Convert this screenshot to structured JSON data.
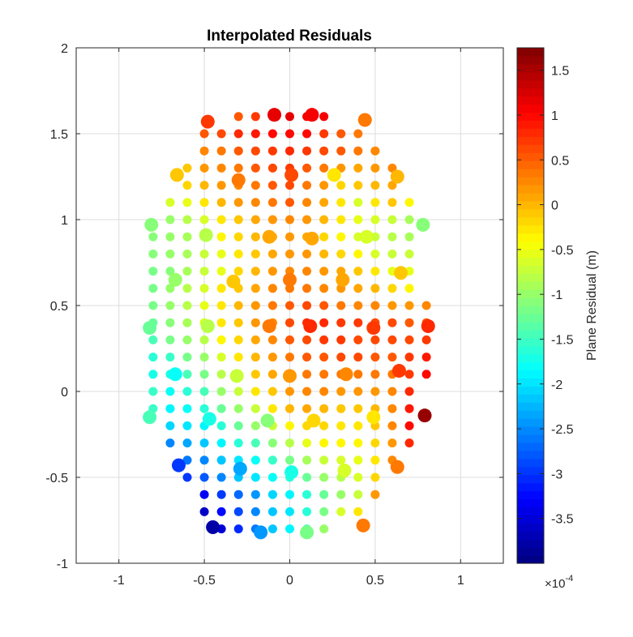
{
  "chart_data": {
    "type": "scatter",
    "title": "Interpolated Residuals",
    "xlim": [
      -1.25,
      1.25
    ],
    "ylim": [
      -1,
      2
    ],
    "xticks": [
      -1,
      -0.5,
      0,
      0.5,
      1
    ],
    "yticks": [
      -1,
      -0.5,
      0,
      0.5,
      1,
      1.5,
      2
    ],
    "grid": true,
    "colormap": "jet",
    "colorbar": {
      "label": "Plane Residual (m)",
      "exponent_label": "×10",
      "exponent": "-4",
      "clim": [
        -4,
        1.75
      ],
      "ticks": [
        -3.5,
        -3,
        -2.5,
        -2,
        -1.5,
        -1,
        -0.5,
        0,
        0.5,
        1,
        1.5
      ],
      "levels": 64
    },
    "notes": "grid points spaced 0.1 in x and y; value units ×1e-4 m",
    "points_text": "-0.3 1.6 0.5;-0.2 1.6 0.7;-0.1 1.6 1.1;0 1.6 1.2;0.1 1.6 1.1;0.2 1.6 1.1;-0.5 1.5 0.5;-0.4 1.5 0.6;-0.3 1.5 0.8;-0.2 1.5 0.9;-0.1 1.5 1.0;0 1.5 1.0;0.1 1.5 1.0;0.2 1.5 0.7;0.3 1.5 0.5;0.4 1.5 0.4;-0.5 1.4 0.3;-0.4 1.4 0.4;-0.3 1.4 0.5;-0.2 1.4 0.6;-0.1 1.4 0.7;0 1.4 0.8;0.1 1.4 0.7;0.2 1.4 0.6;0.3 1.4 0.5;0.4 1.4 0.4;0.5 1.4 0.3;-0.6 1.3 -0.1;-0.5 1.3 0.2;-0.4 1.3 0.3;-0.3 1.3 0.4;-0.2 1.3 0.5;-0.1 1.3 0.6;0 1.3 0.7;0.1 1.3 0.5;0.2 1.3 0.4;0.3 1.3 0.2;0.4 1.3 0.1;0.5 1.3 0.2;0.6 1.3 0.3;-0.6 1.2 -0.2;-0.5 1.2 0.0;-0.4 1.2 0.2;-0.3 1.2 0.3;-0.2 1.2 0.4;-0.1 1.2 0.5;0 1.2 0.6;0.1 1.2 0.4;0.2 1.2 0.2;0.3 1.2 -0.2;0.4 1.2 -0.1;0.5 1.2 0.0;0.6 1.2 0.1;-0.7 1.1 -0.6;-0.6 1.1 -0.5;-0.5 1.1 -0.3;-0.4 1.1 0.0;-0.3 1.1 0.2;-0.2 1.1 0.3;-0.1 1.1 0.4;0 1.1 0.5;0.1 1.1 0.3;0.2 1.1 0.1;0.3 1.1 -0.3;0.4 1.1 -0.6;0.5 1.1 -0.3;0.6 1.1 -0.1;0.7 1.1 -0.4;-0.7 1.0 -1.0;-0.6 1.0 -0.8;-0.5 1.0 -0.6;-0.4 1.0 -0.3;-0.3 1.0 -0.1;-0.2 1.0 0.1;-0.1 1.0 0.2;0 1.0 0.3;0.1 1.0 0.2;0.2 1.0 0.0;0.3 1.0 -0.3;0.4 1.0 -0.5;0.5 1.0 -0.6;0.6 1.0 -0.7;0.7 1.0 -0.9;-0.8 0.9 -1.1;-0.7 0.9 -1.0;-0.6 0.9 -0.9;-0.5 0.9 -0.7;-0.4 0.9 -0.4;-0.3 0.9 -0.2;-0.2 0.9 0.0;-0.1 0.9 0.1;0 0.9 0.2;0.1 0.9 0.1;0.2 0.9 -0.2;0.3 0.9 -0.4;0.4 0.9 -0.6;0.5 0.9 -0.7;0.6 0.9 -0.8;0.7 0.9 -0.9;-0.8 0.8 -1.1;-0.7 0.8 -1.0;-0.6 0.8 -0.9;-0.5 0.8 -0.7;-0.4 0.8 -0.5;-0.3 0.8 -0.3;-0.2 0.8 -0.1;-0.1 0.8 0.1;0 0.8 0.2;0.1 0.8 0.2;0.2 0.8 0.0;0.3 0.8 -0.2;0.4 0.8 -0.4;0.5 0.8 -0.6;0.6 0.8 -0.7;0.7 0.8 -0.7;-0.8 0.7 -1.2;-0.7 0.7 -1.1;-0.6 0.7 -0.9;-0.5 0.7 -0.7;-0.4 0.7 -0.5;-0.3 0.7 -0.2;-0.2 0.7 0.0;-0.1 0.7 0.2;0 0.7 0.3;0.1 0.7 0.3;0.2 0.7 0.2;0.3 0.7 0.1;0.4 0.7 -0.1;0.5 0.7 -0.3;0.6 0.7 -0.5;0.7 0.7 -0.5;-0.8 0.6 -1.2;-0.7 0.6 -1.0;-0.6 0.6 -0.8;-0.5 0.6 -0.6;-0.4 0.6 -0.3;-0.3 0.6 -0.1;-0.2 0.6 0.1;-0.1 0.6 0.3;0 0.6 0.4;0.1 0.6 0.4;0.2 0.6 0.3;0.3 0.6 0.2;0.4 0.6 0.1;0.5 0.6 0.0;0.6 0.6 -0.2;0.7 0.6 -0.4;-0.8 0.5 -1.2;-0.7 0.5 -1.0;-0.6 0.5 -0.8;-0.5 0.5 -0.5;-0.4 0.5 -0.3;-0.3 0.5 0.0;-0.2 0.5 0.2;-0.1 0.5 0.4;0 0.5 0.5;0.1 0.5 0.6;0.2 0.5 0.5;0.3 0.5 0.4;0.4 0.5 0.3;0.5 0.5 0.3;0.6 0.5 0.2;0.7 0.5 0.2;0.8 0.5 0.3;-0.8 0.4 -1.3;-0.7 0.4 -1.1;-0.6 0.4 -0.9;-0.5 0.4 -0.6;-0.4 0.4 -0.3;-0.3 0.4 -0.1;-0.2 0.4 0.2;-0.1 0.4 0.3;0 0.4 0.6;0.1 0.4 0.8;0.2 0.4 0.8;0.3 0.4 0.7;0.4 0.4 0.7;0.5 0.4 0.6;0.6 0.4 0.6;0.7 0.4 0.5;0.8 0.4 0.5;-0.8 0.3 -1.4;-0.7 0.3 -1.2;-0.6 0.3 -1.0;-0.5 0.3 -0.8;-0.4 0.3 -0.4;-0.3 0.3 -0.2;-0.2 0.3 0.1;-0.1 0.3 0.3;0 0.3 0.5;0.1 0.3 0.6;0.2 0.3 0.7;0.3 0.3 0.7;0.4 0.3 0.6;0.5 0.3 0.6;0.6 0.3 0.6;0.7 0.3 0.6;0.8 0.3 0.7;-0.8 0.2 -1.6;-0.7 0.2 -1.5;-0.6 0.2 -1.2;-0.5 0.2 -1.0;-0.4 0.2 -0.6;-0.3 0.2 -0.3;-0.2 0.2 0.0;-0.1 0.2 0.2;0 0.2 0.4;0.1 0.2 0.5;0.2 0.2 0.5;0.3 0.2 0.6;0.4 0.2 0.6;0.5 0.2 0.5;0.6 0.2 0.5;0.7 0.2 0.7;0.8 0.2 0.9;-0.8 0.1 -1.7;-0.7 0.1 -1.7;-0.6 0.1 -1.4;-0.5 0.1 -1.2;-0.4 0.1 -0.8;-0.3 0.1 -0.5;-0.2 0.1 -0.1;-0.1 0.1 0.1;0 0.1 0.3;0.1 0.1 0.4;0.2 0.1 0.4;0.3 0.1 0.4;0.4 0.1 0.4;0.5 0.1 0.4;0.6 0.1 0.4;0.7 0.1 0.7;0.8 0.1 1.0;-0.8 0.0 -1.5;-0.7 0.0 -1.8;-0.6 0.0 -1.6;-0.5 0.0 -1.4;-0.4 0.0 -1.0;-0.3 0.0 -0.7;-0.2 0.0 -0.3;-0.1 0.0 -0.1;0 0.0 0.2;0.1 0.0 0.3;0.2 0.0 0.3;0.3 0.0 0.2;0.4 0.0 0.2;0.5 0.0 0.2;0.6 0.0 0.3;0.7 0.0 0.8;-0.8 -0.1 -1.5;-0.7 -0.1 -1.9;-0.6 -0.1 -1.8;-0.5 -0.1 -1.6;-0.4 -0.1 -1.3;-0.3 -0.1 -1.0;-0.2 -0.1 -0.7;-0.1 -0.1 -0.3;0 -0.1 0.0;0.1 -0.1 0.1;0.2 -0.1 0.0;0.3 -0.1 -0.1;0.4 -0.1 -0.1;0.5 -0.1 0.0;0.6 -0.1 0.3;0.7 -0.1 0.9;-0.7 -0.2 -2.1;-0.6 -0.2 -2.0;-0.5 -0.2 -1.9;-0.4 -0.2 -1.6;-0.3 -0.2 -1.3;-0.2 -0.2 -1.0;-0.1 -0.2 -0.7;0 -0.2 -0.4;0.1 -0.2 -0.2;0.2 -0.2 -0.2;0.3 -0.2 -0.3;0.4 -0.2 -0.3;0.5 -0.2 -0.1;0.6 -0.2 0.3;0.7 -0.2 1.0;-0.7 -0.3 -2.5;-0.6 -0.3 -2.3;-0.5 -0.3 -2.2;-0.4 -0.3 -1.9;-0.3 -0.3 -1.6;-0.2 -0.3 -1.4;-0.1 -0.3 -1.1;0 -0.3 -0.8;0.1 -0.3 -0.5;0.2 -0.3 -0.4;0.3 -0.3 -0.4;0.4 -0.3 -0.4;0.5 -0.3 -0.2;0.6 -0.3 0.2;0.7 -0.3 0.8;-0.6 -0.4 -2.6;-0.5 -0.4 -2.5;-0.4 -0.4 -2.2;-0.3 -0.4 -2.0;-0.2 -0.4 -1.8;-0.1 -0.4 -1.5;0 -0.4 -1.2;0.1 -0.4 -0.9;0.2 -0.4 -0.7;0.3 -0.4 -0.6;0.4 -0.4 -0.5;0.5 -0.4 -0.3;0.6 -0.4 0.3;-0.6 -0.5 -3.0;-0.5 -0.5 -2.8;-0.4 -0.5 -2.5;-0.3 -0.5 -2.2;-0.2 -0.5 -2.0;-0.1 -0.5 -1.8;0 -0.5 -1.6;0.1 -0.5 -1.3;0.2 -0.5 -1.0;0.3 -0.5 -0.8;0.4 -0.5 -0.6;0.5 -0.5 -0.2;-0.5 -0.6 -3.3;-0.4 -0.6 -3.0;-0.3 -0.6 -2.7;-0.2 -0.6 -2.4;-0.1 -0.6 -2.1;0 -0.6 -1.9;0.1 -0.6 -1.6;0.2 -0.6 -1.3;0.3 -0.6 -1.0;0.4 -0.6 -0.7;0.5 -0.6 0.2;-0.5 -0.7 -3.6;-0.4 -0.7 -3.2;-0.3 -0.7 -2.9;-0.2 -0.7 -2.5;-0.1 -0.7 -2.2;0 -0.7 -2.0;0.1 -0.7 -1.6;0.2 -0.7 -1.2;0.3 -0.7 -0.6;0.4 -0.7 -0.3;-0.4 -0.8 -3.5;-0.3 -0.8 -3.1;-0.2 -0.8 -2.6;-0.1 -0.8 -2.2;0 -0.8 -1.9;0.1 -0.8 -1.4;0.2 -0.8 -1.0",
    "big_points_text": "-0.48 1.57 0.7;-0.09 1.61 1.2;0.13 1.61 1.1;0.44 1.58 0.4;-0.66 1.26 -0.1;-0.3 1.23 0.4;0.01 1.26 0.6;0.26 1.26 -0.3;0.63 1.25 0.0;-0.81 0.97 -1.1;-0.49 0.91 -0.8;-0.12 0.9 0.1;0.13 0.89 0.1;0.45 0.9 -0.6;0.78 0.97 -1.1;-0.67 0.65 -1.0;-0.33 0.64 -0.1;0 0.65 0.4;0.31 0.65 0.1;0.65 0.69 -0.1;-0.82 0.37 -1.3;-0.48 0.38 -0.8;-0.12 0.38 0.4;0.12 0.38 0.8;0.49 0.37 0.7;0.81 0.38 0.8;-0.67 0.1 -1.8;-0.31 0.09 -0.7;0 0.09 0.2;0.33 0.1 0.3;0.64 0.12 0.7;-0.82 -0.15 -1.4;-0.47 -0.16 -1.7;-0.13 -0.17 -1.1;0.14 -0.17 -0.2;0.49 -0.15 -0.3;0.79 -0.14 1.6;-0.65 -0.43 -3.0;-0.29 -0.45 -2.3;0.01 -0.47 -1.7;0.32 -0.46 -0.6;0.63 -0.44 0.4;-0.45 -0.79 -3.8;-0.17 -0.82 -2.4;0.1 -0.82 -1.2;0.43 -0.78 0.4"
  }
}
